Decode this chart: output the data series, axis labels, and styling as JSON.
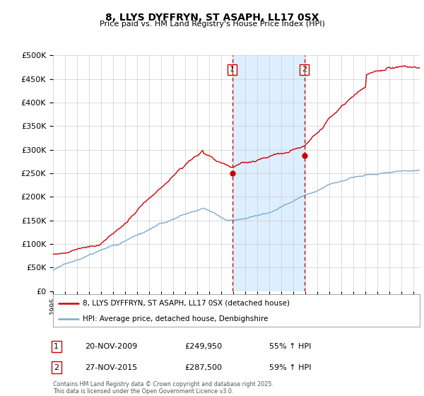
{
  "title": "8, LLYS DYFFRYN, ST ASAPH, LL17 0SX",
  "subtitle": "Price paid vs. HM Land Registry's House Price Index (HPI)",
  "ylim": [
    0,
    500000
  ],
  "yticks": [
    0,
    50000,
    100000,
    150000,
    200000,
    250000,
    300000,
    350000,
    400000,
    450000,
    500000
  ],
  "sale1_date": "20-NOV-2009",
  "sale1_price": 249950,
  "sale1_hpi_pct": "55% ↑ HPI",
  "sale1_label": "1",
  "sale2_date": "27-NOV-2015",
  "sale2_price": 287500,
  "sale2_hpi_pct": "59% ↑ HPI",
  "sale2_label": "2",
  "property_line_color": "#cc0000",
  "hpi_line_color": "#7aaad0",
  "highlight_fill_color": "#ddeeff",
  "vline_color": "#cc0000",
  "grid_color": "#cccccc",
  "background_color": "#ffffff",
  "legend_property_label": "8, LLYS DYFFRYN, ST ASAPH, LL17 0SX (detached house)",
  "legend_hpi_label": "HPI: Average price, detached house, Denbighshire",
  "footer": "Contains HM Land Registry data © Crown copyright and database right 2025.\nThis data is licensed under the Open Government Licence v3.0.",
  "sale1_year": 2009.9,
  "sale2_year": 2015.9
}
